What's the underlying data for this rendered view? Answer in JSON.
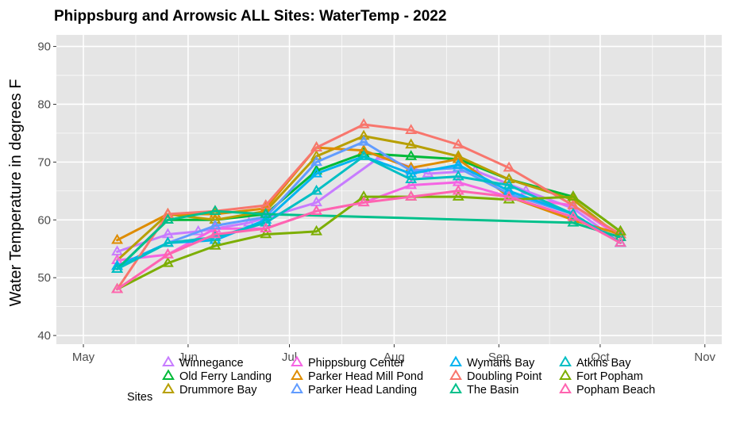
{
  "chart_data": {
    "type": "line",
    "title": "Phippsburg  and Arrowsic ALL Sites: WaterTemp - 2022",
    "xlabel": "",
    "ylabel": "Water Temperature in degrees F",
    "x_ticks": [
      {
        "label": "May",
        "day": 121
      },
      {
        "label": "Jun",
        "day": 152
      },
      {
        "label": "Jul",
        "day": 182
      },
      {
        "label": "Aug",
        "day": 213
      },
      {
        "label": "Sep",
        "day": 244
      },
      {
        "label": "Oct",
        "day": 274
      },
      {
        "label": "Nov",
        "day": 305
      }
    ],
    "xlim": [
      113,
      310
    ],
    "ylim": [
      38.5,
      92
    ],
    "y_ticks": [
      40,
      50,
      60,
      70,
      80,
      90
    ],
    "legend_title": "Sites",
    "background": "#e5e5e5",
    "grid": "#ffffff",
    "series": [
      {
        "name": "Winnegance",
        "color": "#C77CFF",
        "points": [
          [
            131,
            54.5
          ],
          [
            146,
            57.5
          ],
          [
            155,
            58
          ],
          [
            170,
            59.5
          ],
          [
            190,
            63
          ],
          [
            209,
            71
          ],
          [
            223,
            68
          ],
          [
            237,
            68.5
          ],
          [
            252,
            65
          ],
          [
            266,
            62
          ],
          [
            280,
            56
          ]
        ]
      },
      {
        "name": "Old Ferry Landing",
        "color": "#00BA38",
        "points": [
          [
            131,
            51.5
          ],
          [
            146,
            60
          ],
          [
            160,
            60
          ],
          [
            175,
            61
          ],
          [
            190,
            68.5
          ],
          [
            204,
            71.5
          ],
          [
            218,
            71
          ],
          [
            232,
            70.5
          ],
          [
            247,
            67
          ],
          [
            266,
            64
          ],
          [
            280,
            58
          ]
        ]
      },
      {
        "name": "Drummore Bay",
        "color": "#B79F00",
        "points": [
          [
            131,
            53
          ],
          [
            146,
            61
          ],
          [
            160,
            60
          ],
          [
            175,
            61.5
          ],
          [
            190,
            71
          ],
          [
            204,
            74.5
          ],
          [
            218,
            73
          ],
          [
            232,
            71
          ],
          [
            247,
            67
          ],
          [
            266,
            63.5
          ],
          [
            280,
            57
          ]
        ]
      },
      {
        "name": "Phippsburg Center",
        "color": "#F564E3",
        "points": [
          [
            131,
            53
          ],
          [
            146,
            54
          ],
          [
            160,
            58.5
          ],
          [
            175,
            58.5
          ],
          [
            190,
            61.5
          ],
          [
            204,
            63
          ],
          [
            218,
            66
          ],
          [
            232,
            66.5
          ],
          [
            247,
            64
          ],
          [
            266,
            62.5
          ],
          [
            280,
            57
          ]
        ]
      },
      {
        "name": "Parker Head Mill Pond",
        "color": "#DE8C00",
        "points": [
          [
            131,
            56.5
          ],
          [
            146,
            61
          ],
          [
            160,
            61
          ],
          [
            175,
            62
          ],
          [
            190,
            72.5
          ],
          [
            204,
            72
          ],
          [
            218,
            69
          ],
          [
            232,
            70.5
          ],
          [
            247,
            64
          ],
          [
            266,
            60
          ],
          [
            280,
            57.5
          ]
        ]
      },
      {
        "name": "Parker Head Landing",
        "color": "#619CFF",
        "points": [
          [
            131,
            52
          ],
          [
            146,
            56
          ],
          [
            160,
            59
          ],
          [
            175,
            60.5
          ],
          [
            190,
            70
          ],
          [
            204,
            73.5
          ],
          [
            218,
            68.5
          ],
          [
            232,
            69
          ],
          [
            247,
            64.5
          ],
          [
            266,
            61
          ],
          [
            280,
            56
          ]
        ]
      },
      {
        "name": "Wymans Bay",
        "color": "#00B4F0",
        "points": [
          [
            131,
            52
          ],
          [
            146,
            56
          ],
          [
            160,
            56.5
          ],
          [
            175,
            60
          ],
          [
            190,
            68
          ],
          [
            204,
            71
          ],
          [
            218,
            68
          ],
          [
            232,
            69.5
          ],
          [
            247,
            65
          ],
          [
            266,
            61
          ],
          [
            280,
            56
          ]
        ]
      },
      {
        "name": "Doubling Point",
        "color": "#F8766D",
        "points": [
          [
            131,
            48
          ],
          [
            146,
            61
          ],
          [
            160,
            61.5
          ],
          [
            175,
            62.5
          ],
          [
            190,
            72.5
          ],
          [
            204,
            76.5
          ],
          [
            218,
            75.5
          ],
          [
            232,
            73
          ],
          [
            247,
            69
          ],
          [
            266,
            62.5
          ],
          [
            280,
            57.5
          ]
        ]
      },
      {
        "name": "The Basin",
        "color": "#00C08B",
        "points": [
          [
            131,
            51.5
          ],
          [
            146,
            60
          ],
          [
            160,
            61.5
          ],
          [
            175,
            61
          ],
          [
            266,
            59.5
          ],
          [
            280,
            57
          ]
        ]
      },
      {
        "name": "Atkins Bay",
        "color": "#00BFC4",
        "points": [
          [
            131,
            51.5
          ],
          [
            146,
            56
          ],
          [
            160,
            57
          ],
          [
            175,
            59.5
          ],
          [
            190,
            65
          ],
          [
            204,
            71
          ],
          [
            218,
            67
          ],
          [
            232,
            67.5
          ],
          [
            247,
            66
          ],
          [
            266,
            61
          ],
          [
            280,
            56
          ]
        ]
      },
      {
        "name": "Fort Popham",
        "color": "#7CAE00",
        "points": [
          [
            131,
            48
          ],
          [
            146,
            52.5
          ],
          [
            160,
            55.5
          ],
          [
            175,
            57.5
          ],
          [
            190,
            58
          ],
          [
            204,
            64
          ],
          [
            218,
            64
          ],
          [
            232,
            64
          ],
          [
            247,
            63.5
          ],
          [
            266,
            64
          ],
          [
            280,
            58
          ]
        ]
      },
      {
        "name": "Popham Beach",
        "color": "#FF64B0",
        "points": [
          [
            131,
            48
          ],
          [
            146,
            54
          ],
          [
            160,
            57.5
          ],
          [
            175,
            58.5
          ],
          [
            190,
            61.5
          ],
          [
            204,
            63
          ],
          [
            218,
            64
          ],
          [
            232,
            65
          ],
          [
            247,
            64
          ],
          [
            266,
            60.5
          ],
          [
            280,
            56
          ]
        ]
      }
    ]
  }
}
